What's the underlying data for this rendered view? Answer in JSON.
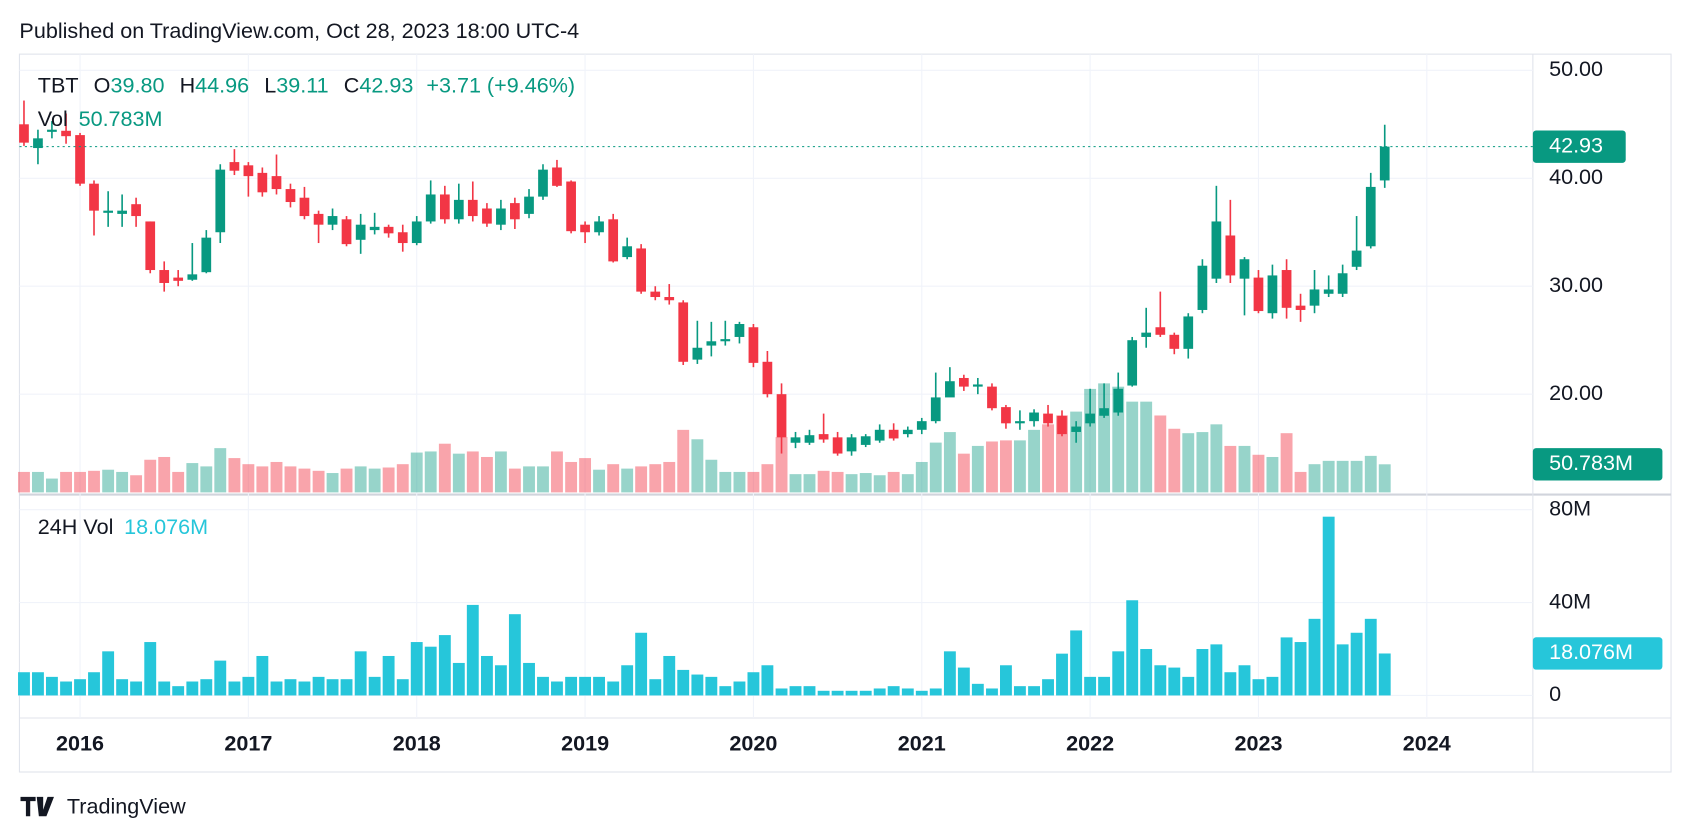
{
  "published": "Published on TradingView.com, Oct 28, 2023 18:00 UTC-4",
  "brand": "TradingView",
  "chart_data": {
    "type": "candlestick",
    "up_color": "#089981",
    "down_color": "#f23645",
    "grid": true,
    "xlim": [
      2015.64,
      2024.63
    ],
    "xticks": [
      2016,
      2017,
      2018,
      2019,
      2020,
      2021,
      2022,
      2023,
      2024
    ],
    "ylim": [
      10.9,
      51.5
    ],
    "yticks": [
      {
        "value": 50,
        "label": "50.00"
      },
      {
        "value": 40,
        "label": "40.00"
      },
      {
        "value": 30,
        "label": "30.00"
      },
      {
        "value": 20,
        "label": "20.00"
      }
    ],
    "x": [
      2015.667,
      2015.75,
      2015.833,
      2015.917,
      2016,
      2016.083,
      2016.167,
      2016.25,
      2016.333,
      2016.417,
      2016.5,
      2016.583,
      2016.667,
      2016.75,
      2016.833,
      2016.917,
      2017,
      2017.083,
      2017.167,
      2017.25,
      2017.333,
      2017.417,
      2017.5,
      2017.583,
      2017.667,
      2017.75,
      2017.833,
      2017.917,
      2018,
      2018.083,
      2018.167,
      2018.25,
      2018.333,
      2018.417,
      2018.5,
      2018.583,
      2018.667,
      2018.75,
      2018.833,
      2018.917,
      2019,
      2019.083,
      2019.167,
      2019.25,
      2019.333,
      2019.417,
      2019.5,
      2019.583,
      2019.667,
      2019.75,
      2019.833,
      2019.917,
      2020,
      2020.083,
      2020.167,
      2020.25,
      2020.333,
      2020.417,
      2020.5,
      2020.583,
      2020.667,
      2020.75,
      2020.833,
      2020.917,
      2021,
      2021.083,
      2021.167,
      2021.25,
      2021.333,
      2021.417,
      2021.5,
      2021.583,
      2021.667,
      2021.75,
      2021.833,
      2021.917,
      2022,
      2022.083,
      2022.167,
      2022.25,
      2022.333,
      2022.417,
      2022.5,
      2022.583,
      2022.667,
      2022.75,
      2022.833,
      2022.917,
      2023,
      2023.083,
      2023.167,
      2023.25,
      2023.333,
      2023.417,
      2023.5,
      2023.583,
      2023.667,
      2023.75
    ],
    "series": [
      {
        "name": "TBT",
        "ohlc_keys": [
          "O",
          "H",
          "L",
          "C"
        ],
        "open": [
          45,
          42.8,
          44.3,
          44.4,
          44,
          39.5,
          36.8,
          36.7,
          37.6,
          36,
          31.5,
          30.8,
          30.6,
          31.3,
          35,
          41.5,
          41.2,
          40.5,
          40.2,
          39,
          38.2,
          36.7,
          35.7,
          36.2,
          34.3,
          35.2,
          35.5,
          35,
          34,
          36,
          38.5,
          36.2,
          38,
          37.2,
          35.7,
          37.7,
          36.7,
          38.3,
          41,
          39.7,
          35.7,
          35,
          36.2,
          32.7,
          33.5,
          29.5,
          29,
          28.5,
          23.2,
          24.5,
          24.9,
          25.3,
          26.2,
          23,
          20,
          15.5,
          15.5,
          16.3,
          16,
          14.7,
          15.3,
          15.7,
          16.7,
          16.3,
          16.7,
          17.5,
          19.7,
          21.5,
          20.7,
          20.7,
          18.8,
          17.3,
          17.5,
          18.2,
          18,
          16.5,
          17.3,
          18,
          18.3,
          20.8,
          25.3,
          26.2,
          25.5,
          24.2,
          27.8,
          30.7,
          34.7,
          30.7,
          30.8,
          27.5,
          31.5,
          28.2,
          28.2,
          29.3,
          29.3,
          31.8,
          33.7,
          39.8
        ],
        "high": [
          47.2,
          44.5,
          45.3,
          46,
          44.2,
          39.8,
          38.8,
          38.5,
          38.2,
          36,
          32.3,
          31.5,
          34,
          35.2,
          41.3,
          42.7,
          41.5,
          41,
          42.2,
          39.5,
          39.2,
          37,
          37.2,
          36.5,
          36.7,
          36.8,
          35.7,
          35.7,
          36.5,
          39.8,
          39.3,
          39.5,
          39.7,
          37.7,
          38,
          38.2,
          39,
          41.3,
          41.7,
          39.8,
          36,
          36.5,
          36.7,
          34.5,
          33.9,
          30,
          30.2,
          28.7,
          26.8,
          26.7,
          26.8,
          26.7,
          26.5,
          24,
          21,
          16.5,
          16.7,
          18.2,
          16.5,
          16.3,
          16.3,
          17.2,
          17.3,
          17,
          17.8,
          22,
          22.5,
          21.8,
          21.5,
          21,
          19,
          18.5,
          18.6,
          19,
          18.5,
          17.5,
          20.5,
          21,
          22,
          25.3,
          28,
          29.5,
          25.7,
          27.5,
          32.5,
          39.3,
          38,
          32.7,
          31.5,
          32,
          32.5,
          29.3,
          31.5,
          31,
          32,
          36.5,
          40.5,
          44.96
        ],
        "low": [
          43,
          41.3,
          43.7,
          43.2,
          39.3,
          34.7,
          35.5,
          35.5,
          35.5,
          31.2,
          29.5,
          30,
          30.5,
          31.2,
          34,
          40.3,
          38.3,
          38.3,
          38.5,
          37.3,
          36.2,
          34,
          35.2,
          33.7,
          33,
          34.8,
          34.5,
          33.2,
          33.8,
          35.8,
          35.8,
          35.8,
          36,
          35.5,
          35.2,
          35.3,
          36.3,
          38,
          39.2,
          34.9,
          34,
          34.7,
          32.2,
          32.5,
          29.3,
          28.7,
          28.3,
          22.7,
          22.8,
          23.5,
          24.5,
          24.7,
          22.5,
          19.7,
          14.5,
          15,
          15.3,
          15.5,
          14.3,
          14.3,
          15.1,
          15.5,
          15.7,
          16,
          16.3,
          17.3,
          20,
          20.3,
          20,
          18.5,
          16.8,
          16.7,
          17,
          17,
          16.1,
          15.5,
          17,
          17.8,
          18,
          20.7,
          24.3,
          25.3,
          23.7,
          23.3,
          27.5,
          30.3,
          30.3,
          27.3,
          27.5,
          27,
          27,
          26.7,
          27.5,
          29,
          29,
          31.5,
          33.5,
          39.11
        ],
        "close": [
          43.3,
          43.7,
          44.5,
          43.9,
          39.5,
          37,
          37,
          37,
          36.5,
          31.5,
          30.3,
          30.5,
          31.1,
          34.5,
          40.8,
          40.7,
          40.2,
          38.7,
          39,
          37.8,
          36.5,
          35.7,
          36.5,
          33.9,
          35.7,
          35.5,
          34.9,
          34,
          36,
          38.5,
          36.2,
          38,
          36.5,
          35.8,
          37.2,
          36.2,
          38.3,
          40.8,
          39.3,
          35.1,
          35,
          36,
          32.3,
          33.7,
          29.5,
          29,
          28.7,
          23,
          24.3,
          24.9,
          25.1,
          26.5,
          22.9,
          20,
          16,
          16,
          16.2,
          15.8,
          14.5,
          16,
          16.1,
          16.7,
          15.9,
          16.7,
          17.5,
          19.7,
          21.2,
          20.7,
          20.9,
          18.7,
          17.3,
          17.5,
          18.3,
          17.3,
          16.3,
          17,
          18.2,
          18.7,
          20.5,
          25,
          25.7,
          25.5,
          24.2,
          27.2,
          31.9,
          36,
          31,
          32.5,
          27.7,
          31,
          28,
          27.8,
          29.7,
          29.7,
          31.2,
          33.3,
          39.2,
          42.93
        ],
        "value_labels": {
          "open": "39.80",
          "high": "44.96",
          "low": "39.11",
          "close": "42.93"
        },
        "change_label": "+3.71 (+9.46%)"
      }
    ],
    "volume": {
      "name": "Vol",
      "value_label": "50.783M",
      "values": [
        37,
        37,
        25,
        37,
        37,
        39,
        41,
        37,
        31,
        59,
        64,
        37,
        53,
        47,
        80,
        62,
        51,
        47,
        55,
        47,
        43,
        39,
        35,
        43,
        47,
        43,
        45,
        51,
        72,
        74,
        88,
        70,
        74,
        64,
        74,
        43,
        47,
        47,
        74,
        55,
        62,
        41,
        51,
        43,
        47,
        51,
        55,
        113,
        96,
        59,
        37,
        37,
        37,
        51,
        100,
        33,
        33,
        39,
        37,
        33,
        35,
        31,
        37,
        33,
        55,
        90,
        109,
        70,
        84,
        92,
        94,
        94,
        113,
        123,
        139,
        146,
        187,
        197,
        191,
        164,
        164,
        139,
        115,
        107,
        109,
        123,
        84,
        84,
        68,
        64,
        107,
        37,
        51,
        57,
        57,
        57,
        66,
        50.783
      ]
    },
    "volume_24h": {
      "name": "24H Vol",
      "value_label": "18.076M",
      "color": "#26c6da",
      "ylim": [
        -7.4,
        85.6
      ],
      "yticks": [
        {
          "value": 80,
          "label": "80M"
        },
        {
          "value": 40,
          "label": "40M"
        },
        0
      ],
      "values": [
        10,
        10,
        8,
        6,
        7,
        10,
        19,
        7,
        6,
        23,
        6,
        4,
        6,
        7,
        15,
        6,
        8,
        17,
        6,
        7,
        6,
        8,
        7,
        7,
        19,
        8,
        17,
        7,
        23,
        21,
        26,
        14,
        39,
        17,
        13,
        35,
        14,
        8,
        6,
        8,
        8,
        8,
        6,
        13,
        27,
        7,
        17,
        11,
        9,
        8,
        4,
        6,
        10,
        13,
        3,
        4,
        4,
        2,
        2,
        2,
        2,
        3,
        4,
        3,
        2,
        3,
        19,
        12,
        5,
        3,
        13,
        4,
        4,
        7,
        18,
        28,
        8,
        8,
        19,
        41,
        20,
        13,
        12,
        8,
        20,
        22,
        10,
        13,
        7,
        8,
        25,
        23,
        33,
        77,
        22,
        27,
        33,
        18.076
      ]
    }
  }
}
